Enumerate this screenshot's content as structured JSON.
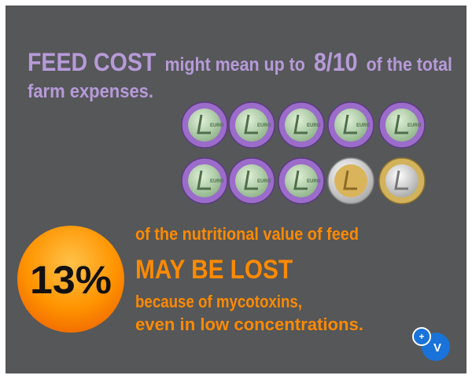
{
  "headline": {
    "highlight": "FEED COST",
    "text1": "might mean up to",
    "ratio": "8/10",
    "text2": "of the total",
    "text3": "farm expenses."
  },
  "callout": {
    "figure": "13%",
    "line1": "of the nutritional value of feed",
    "line2": "MAY BE LOST",
    "line3": "because of mycotoxins,",
    "line4": "even in low concentrations."
  },
  "badge": {
    "plus": "+",
    "letter": "V"
  }
}
